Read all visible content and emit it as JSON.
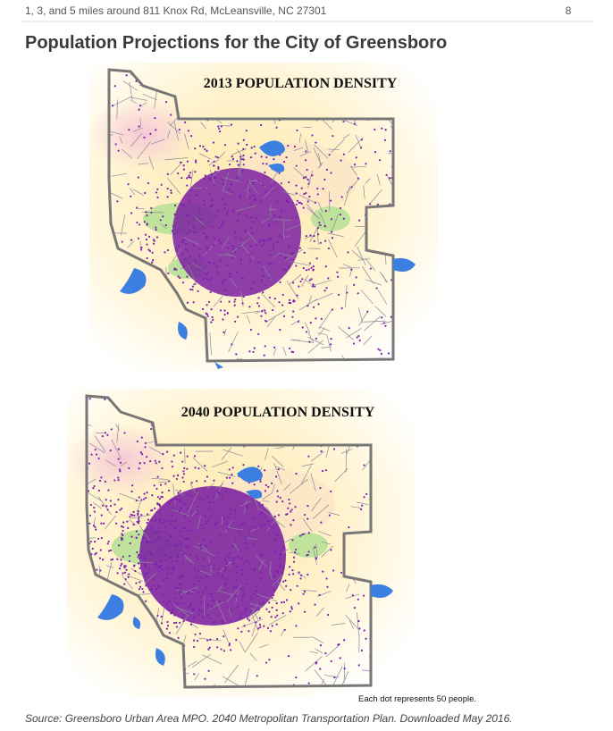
{
  "header": {
    "text": "1, 3, and 5 miles around 811 Knox Rd, McLeansville, NC 27301",
    "page_number": "8"
  },
  "title": "Population Projections for the City of Greensboro",
  "maps": [
    {
      "title": "2013 POPULATION DENSITY"
    },
    {
      "title": "2040 POPULATION DENSITY",
      "note": "Each dot represents 50 people."
    }
  ],
  "source": "Source: Greensboro Urban Area MPO. 2040 Metropolitan Transportation Plan. Downloaded May 2016."
}
